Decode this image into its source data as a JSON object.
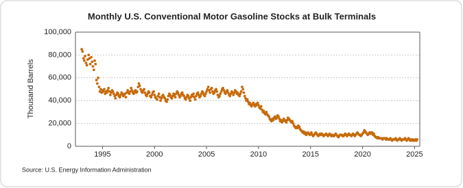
{
  "chart_data": {
    "type": "scatter",
    "title": "Monthly U.S. Conventional Motor Gasoline Stocks at Bulk Terminals",
    "ylabel": "Thousand Barrels",
    "source": "Source: U.S. Energy Information Administration",
    "color": "#c66a0a",
    "grid": true,
    "xlim": [
      1992.4,
      2025.5
    ],
    "ylim": [
      0,
      100000
    ],
    "xticks": [
      1995,
      2000,
      2005,
      2010,
      2015,
      2020,
      2025
    ],
    "yticks": [
      0,
      {
        "value": 20000,
        "label": "20,000"
      },
      {
        "value": 40000,
        "label": "40,000"
      },
      {
        "value": 60000,
        "label": "60,000"
      },
      {
        "value": 80000,
        "label": "80,000"
      },
      {
        "value": 100000,
        "label": "100,000"
      }
    ],
    "x": [
      1993,
      1993.08,
      1993.17,
      1993.25,
      1993.33,
      1993.42,
      1993.5,
      1993.58,
      1993.67,
      1993.75,
      1993.83,
      1993.92,
      1994,
      1994.08,
      1994.17,
      1994.25,
      1994.33,
      1994.42,
      1994.5,
      1994.58,
      1994.67,
      1994.75,
      1994.83,
      1994.92,
      1995,
      1995.08,
      1995.17,
      1995.25,
      1995.33,
      1995.42,
      1995.5,
      1995.58,
      1995.67,
      1995.75,
      1995.83,
      1995.92,
      1996,
      1996.08,
      1996.17,
      1996.25,
      1996.33,
      1996.42,
      1996.5,
      1996.58,
      1996.67,
      1996.75,
      1996.83,
      1996.92,
      1997,
      1997.08,
      1997.17,
      1997.25,
      1997.33,
      1997.42,
      1997.5,
      1997.58,
      1997.67,
      1997.75,
      1997.83,
      1997.92,
      1998,
      1998.08,
      1998.17,
      1998.25,
      1998.33,
      1998.42,
      1998.5,
      1998.58,
      1998.67,
      1998.75,
      1998.83,
      1998.92,
      1999,
      1999.08,
      1999.17,
      1999.25,
      1999.33,
      1999.42,
      1999.5,
      1999.58,
      1999.67,
      1999.75,
      1999.83,
      1999.92,
      2000,
      2000.08,
      2000.17,
      2000.25,
      2000.33,
      2000.42,
      2000.5,
      2000.58,
      2000.67,
      2000.75,
      2000.83,
      2000.92,
      2001,
      2001.08,
      2001.17,
      2001.25,
      2001.33,
      2001.42,
      2001.5,
      2001.58,
      2001.67,
      2001.75,
      2001.83,
      2001.92,
      2002,
      2002.08,
      2002.17,
      2002.25,
      2002.33,
      2002.42,
      2002.5,
      2002.58,
      2002.67,
      2002.75,
      2002.83,
      2002.92,
      2003,
      2003.08,
      2003.17,
      2003.25,
      2003.33,
      2003.42,
      2003.5,
      2003.58,
      2003.67,
      2003.75,
      2003.83,
      2003.92,
      2004,
      2004.08,
      2004.17,
      2004.25,
      2004.33,
      2004.42,
      2004.5,
      2004.58,
      2004.67,
      2004.75,
      2004.83,
      2004.92,
      2005,
      2005.08,
      2005.17,
      2005.25,
      2005.33,
      2005.42,
      2005.5,
      2005.58,
      2005.67,
      2005.75,
      2005.83,
      2005.92,
      2006,
      2006.08,
      2006.17,
      2006.25,
      2006.33,
      2006.42,
      2006.5,
      2006.58,
      2006.67,
      2006.75,
      2006.83,
      2006.92,
      2007,
      2007.08,
      2007.17,
      2007.25,
      2007.33,
      2007.42,
      2007.5,
      2007.58,
      2007.67,
      2007.75,
      2007.83,
      2007.92,
      2008,
      2008.08,
      2008.17,
      2008.25,
      2008.33,
      2008.42,
      2008.5,
      2008.58,
      2008.67,
      2008.75,
      2008.83,
      2008.92,
      2009,
      2009.08,
      2009.17,
      2009.25,
      2009.33,
      2009.42,
      2009.5,
      2009.58,
      2009.67,
      2009.75,
      2009.83,
      2009.92,
      2010,
      2010.08,
      2010.17,
      2010.25,
      2010.33,
      2010.42,
      2010.5,
      2010.58,
      2010.67,
      2010.75,
      2010.83,
      2010.92,
      2011,
      2011.08,
      2011.17,
      2011.25,
      2011.33,
      2011.42,
      2011.5,
      2011.58,
      2011.67,
      2011.75,
      2011.83,
      2011.92,
      2012,
      2012.08,
      2012.17,
      2012.25,
      2012.33,
      2012.42,
      2012.5,
      2012.58,
      2012.67,
      2012.75,
      2012.83,
      2012.92,
      2013,
      2013.08,
      2013.17,
      2013.25,
      2013.33,
      2013.42,
      2013.5,
      2013.58,
      2013.67,
      2013.75,
      2013.83,
      2013.92,
      2014,
      2014.08,
      2014.17,
      2014.25,
      2014.33,
      2014.42,
      2014.5,
      2014.58,
      2014.67,
      2014.75,
      2014.83,
      2014.92,
      2015,
      2015.08,
      2015.17,
      2015.25,
      2015.33,
      2015.42,
      2015.5,
      2015.58,
      2015.67,
      2015.75,
      2015.83,
      2015.92,
      2016,
      2016.08,
      2016.17,
      2016.25,
      2016.33,
      2016.42,
      2016.5,
      2016.58,
      2016.67,
      2016.75,
      2016.83,
      2016.92,
      2017,
      2017.08,
      2017.17,
      2017.25,
      2017.33,
      2017.42,
      2017.5,
      2017.58,
      2017.67,
      2017.75,
      2017.83,
      2017.92,
      2018,
      2018.08,
      2018.17,
      2018.25,
      2018.33,
      2018.42,
      2018.5,
      2018.58,
      2018.67,
      2018.75,
      2018.83,
      2018.92,
      2019,
      2019.08,
      2019.17,
      2019.25,
      2019.33,
      2019.42,
      2019.5,
      2019.58,
      2019.67,
      2019.75,
      2019.83,
      2019.92,
      2020,
      2020.08,
      2020.17,
      2020.25,
      2020.33,
      2020.42,
      2020.5,
      2020.58,
      2020.67,
      2020.75,
      2020.83,
      2020.92,
      2021,
      2021.08,
      2021.17,
      2021.25,
      2021.33,
      2021.42,
      2021.5,
      2021.58,
      2021.67,
      2021.75,
      2021.83,
      2021.92,
      2022,
      2022.08,
      2022.17,
      2022.25,
      2022.33,
      2022.42,
      2022.5,
      2022.58,
      2022.67,
      2022.75,
      2022.83,
      2022.92,
      2023,
      2023.08,
      2023.17,
      2023.25,
      2023.33,
      2023.42,
      2023.5,
      2023.58,
      2023.67,
      2023.75,
      2023.83,
      2023.92,
      2024,
      2024.08,
      2024.17,
      2024.25,
      2024.33,
      2024.42,
      2024.5,
      2024.58,
      2024.67,
      2024.75,
      2024.83,
      2024.92,
      2025,
      2025.08,
      2025.17,
      2025.25
    ],
    "values": [
      85000,
      83000,
      77000,
      75000,
      79000,
      73000,
      71000,
      76000,
      80000,
      77000,
      72000,
      78000,
      74000,
      70000,
      67000,
      75000,
      72000,
      58000,
      55000,
      60000,
      52000,
      48000,
      50000,
      47000,
      49000,
      48000,
      50000,
      46000,
      48000,
      47000,
      49000,
      51000,
      48000,
      45000,
      47000,
      49000,
      48000,
      46000,
      44000,
      42000,
      45000,
      47000,
      46000,
      44000,
      43000,
      45000,
      47000,
      46000,
      44000,
      45000,
      46000,
      43000,
      47000,
      49000,
      47000,
      46000,
      48000,
      51000,
      49000,
      47000,
      46000,
      48000,
      49000,
      47000,
      48000,
      52000,
      55000,
      53000,
      50000,
      48000,
      47000,
      49000,
      50000,
      47000,
      45000,
      44000,
      46000,
      48000,
      47000,
      44000,
      43000,
      45000,
      47000,
      48000,
      45000,
      43000,
      42000,
      41000,
      44000,
      46000,
      43000,
      40000,
      42000,
      44000,
      45000,
      43000,
      42000,
      40000,
      39000,
      41000,
      44000,
      46000,
      45000,
      43000,
      42000,
      44000,
      46000,
      45000,
      43000,
      46000,
      48000,
      47000,
      45000,
      43000,
      44000,
      46000,
      47000,
      45000,
      44000,
      42000,
      41000,
      43000,
      45000,
      44000,
      42000,
      40000,
      43000,
      45000,
      44000,
      46000,
      43000,
      41000,
      44000,
      46000,
      47000,
      45000,
      43000,
      44000,
      46000,
      48000,
      47000,
      45000,
      44000,
      46000,
      48000,
      50000,
      52000,
      49000,
      47000,
      50000,
      51000,
      48000,
      46000,
      47000,
      49000,
      50000,
      48000,
      45000,
      43000,
      44000,
      46000,
      48000,
      50000,
      51000,
      49000,
      47000,
      46000,
      48000,
      49000,
      47000,
      45000,
      44000,
      46000,
      48000,
      47000,
      45000,
      47000,
      49000,
      48000,
      46000,
      47000,
      45000,
      44000,
      46000,
      48000,
      52000,
      50000,
      47000,
      44000,
      42000,
      40000,
      41000,
      39000,
      37000,
      38000,
      36000,
      35000,
      37000,
      38000,
      36000,
      35000,
      37000,
      36000,
      38000,
      36000,
      34000,
      33000,
      35000,
      32000,
      30000,
      31000,
      29000,
      28000,
      30000,
      28000,
      27000,
      26000,
      24000,
      23000,
      22000,
      24000,
      23000,
      25000,
      26000,
      24000,
      25000,
      27000,
      26000,
      24000,
      22000,
      23000,
      21000,
      22000,
      24000,
      23000,
      22000,
      21000,
      23000,
      25000,
      24000,
      23000,
      22000,
      21000,
      22000,
      20000,
      18000,
      17000,
      16000,
      17000,
      16000,
      18000,
      17000,
      15000,
      14000,
      13000,
      12000,
      13000,
      11000,
      12000,
      10000,
      11000,
      12000,
      11000,
      10000,
      11000,
      12000,
      10000,
      9000,
      10000,
      11000,
      12000,
      11000,
      10000,
      9000,
      10000,
      11000,
      10000,
      11000,
      10000,
      9000,
      10000,
      10000,
      11000,
      10000,
      9000,
      10000,
      11000,
      10000,
      9000,
      10000,
      9000,
      9000,
      10000,
      11000,
      10000,
      9000,
      8000,
      9000,
      10000,
      10000,
      10000,
      9000,
      9000,
      10000,
      11000,
      10000,
      9000,
      10000,
      11000,
      10000,
      10000,
      9000,
      10000,
      11000,
      10000,
      9000,
      10000,
      11000,
      12000,
      11000,
      10000,
      10000,
      9000,
      10000,
      11000,
      12000,
      14000,
      13000,
      12000,
      11000,
      10000,
      11000,
      12000,
      11000,
      12000,
      12000,
      10000,
      11000,
      9000,
      8000,
      8000,
      7000,
      8000,
      7000,
      7000,
      7000,
      7000,
      6000,
      7000,
      7000,
      7000,
      6000,
      7000,
      6000,
      6000,
      6000,
      7000,
      6000,
      5000,
      6000,
      6000,
      6000,
      7000,
      6000,
      5000,
      6000,
      6000,
      7000,
      6000,
      5000,
      6000,
      6000,
      6000,
      7000,
      6000,
      5000,
      6000,
      7000,
      6000,
      5000,
      6000,
      5000,
      6000,
      5000,
      5000,
      6000,
      5000,
      6000
    ]
  }
}
